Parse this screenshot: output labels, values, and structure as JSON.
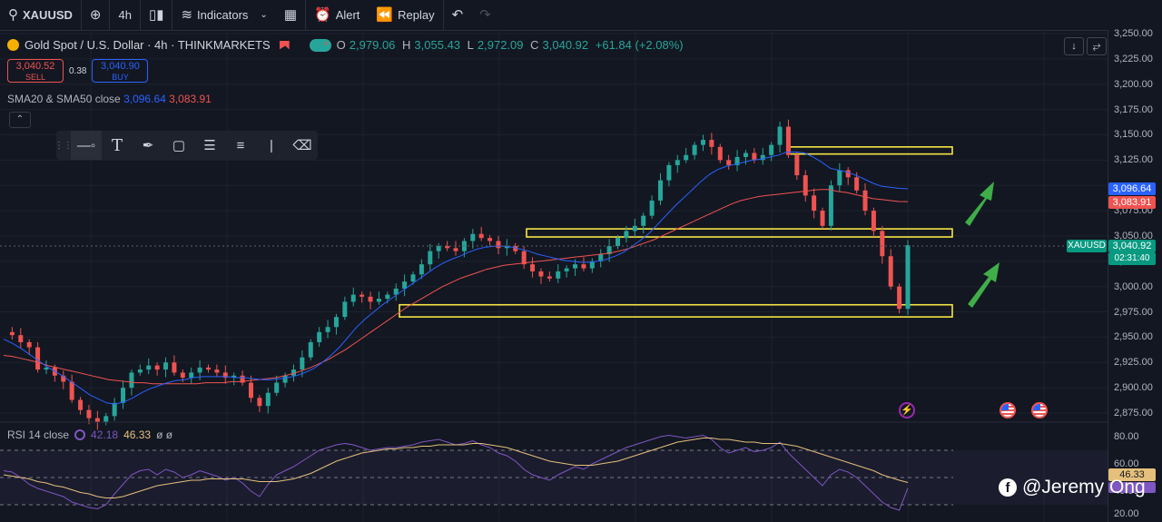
{
  "toolbar": {
    "symbol": "XAUUSD",
    "interval": "4h",
    "indicators_label": "Indicators",
    "alert_label": "Alert",
    "replay_label": "Replay"
  },
  "legend": {
    "title": "Gold Spot / U.S. Dollar · 4h · THINKMARKETS",
    "o_label": "O",
    "o": "2,979.06",
    "h_label": "H",
    "h": "3,055.43",
    "l_label": "L",
    "l": "2,972.09",
    "c_label": "C",
    "c": "3,040.92",
    "change": "+61.84 (+2.08%)"
  },
  "trade": {
    "sell_price": "3,040.52",
    "sell_label": "SELL",
    "spread": "0.38",
    "buy_price": "3,040.90",
    "buy_label": "BUY"
  },
  "sma": {
    "label": "SMA20 & SMA50 close",
    "sma20": "3,096.64",
    "sma50": "3,083.91"
  },
  "collapse_icon": "chevron-up",
  "rsi": {
    "label": "RSI 14 close",
    "v1": "42.18",
    "v2": "46.33",
    "extra": "ø ø"
  },
  "price_axis": {
    "labels": [
      "3,250.00",
      "3,225.00",
      "3,200.00",
      "3,175.00",
      "3,150.00",
      "3,125.00",
      "3,075.00",
      "3,050.00",
      "3,025.00",
      "3,000.00",
      "2,975.00",
      "2,950.00",
      "2,925.00",
      "2,900.00",
      "2,875.00"
    ],
    "sma20_tag": "3,096.64",
    "sma50_tag": "3,083.91",
    "price_tag": "3,040.92",
    "countdown": "02:31:40",
    "symbol_tag": "XAUUSD"
  },
  "rsi_axis": {
    "labels": [
      "80.00",
      "60.00",
      "40.00",
      "20.00"
    ],
    "tag": "46.33"
  },
  "watermark": "@Jeremy Ong",
  "colors": {
    "bg": "#131722",
    "up": "#26a69a",
    "down": "#ef5350",
    "sma20": "#2962ff",
    "sma50": "#ef5350",
    "zone": "#f5e642",
    "arrow": "#3fae49",
    "rsi": "#7e57c2",
    "rsi_ma": "#e5c07b"
  },
  "chart_data": {
    "type": "candlestick",
    "title": "Gold Spot / U.S. Dollar · 4h · THINKMARKETS",
    "ylim": [
      2860,
      3255
    ],
    "price_series": [
      2955,
      2952,
      2945,
      2940,
      2918,
      2920,
      2912,
      2906,
      2888,
      2878,
      2870,
      2866,
      2872,
      2885,
      2900,
      2915,
      2918,
      2922,
      2918,
      2925,
      2915,
      2910,
      2915,
      2920,
      2918,
      2915,
      2910,
      2912,
      2905,
      2890,
      2882,
      2895,
      2905,
      2912,
      2918,
      2930,
      2945,
      2955,
      2960,
      2970,
      2985,
      2992,
      2990,
      2985,
      2988,
      2992,
      2998,
      3005,
      3012,
      3022,
      3035,
      3040,
      3038,
      3035,
      3045,
      3052,
      3048,
      3045,
      3038,
      3040,
      3035,
      3022,
      3015,
      3010,
      3008,
      3015,
      3018,
      3022,
      3018,
      3025,
      3032,
      3040,
      3048,
      3055,
      3060,
      3070,
      3085,
      3105,
      3120,
      3125,
      3130,
      3140,
      3145,
      3138,
      3125,
      3120,
      3128,
      3132,
      3125,
      3130,
      3140,
      3158,
      3130,
      3110,
      3090,
      3075,
      3060,
      3100,
      3115,
      3108,
      3095,
      3075,
      3055,
      3030,
      3000,
      2978,
      3040.92
    ],
    "sma20_series": [
      2948,
      2944,
      2939,
      2933,
      2927,
      2921,
      2916,
      2911,
      2905,
      2899,
      2893,
      2889,
      2885,
      2884,
      2886,
      2890,
      2895,
      2899,
      2902,
      2905,
      2907,
      2908,
      2910,
      2911,
      2911,
      2911,
      2911,
      2910,
      2910,
      2909,
      2908,
      2908,
      2909,
      2910,
      2912,
      2915,
      2919,
      2925,
      2932,
      2940,
      2950,
      2960,
      2968,
      2975,
      2982,
      2988,
      2994,
      3000,
      3006,
      3012,
      3018,
      3023,
      3027,
      3030,
      3034,
      3037,
      3039,
      3040,
      3040,
      3039,
      3037,
      3035,
      3032,
      3030,
      3028,
      3026,
      3025,
      3024,
      3024,
      3025,
      3027,
      3030,
      3034,
      3040,
      3046,
      3053,
      3062,
      3071,
      3080,
      3088,
      3096,
      3104,
      3111,
      3116,
      3119,
      3121,
      3123,
      3125,
      3126,
      3128,
      3130,
      3133,
      3133,
      3132,
      3128,
      3123,
      3117,
      3115,
      3113,
      3110,
      3106,
      3102,
      3099,
      3098,
      3097,
      3096.64
    ],
    "sma50_series": [
      2932,
      2931,
      2929,
      2927,
      2925,
      2922,
      2920,
      2918,
      2916,
      2914,
      2912,
      2910,
      2908,
      2907,
      2906,
      2905,
      2905,
      2904,
      2904,
      2904,
      2904,
      2904,
      2904,
      2905,
      2905,
      2905,
      2906,
      2906,
      2907,
      2908,
      2909,
      2910,
      2912,
      2914,
      2917,
      2920,
      2924,
      2928,
      2933,
      2938,
      2944,
      2950,
      2956,
      2962,
      2968,
      2974,
      2980,
      2985,
      2990,
      2995,
      3000,
      3004,
      3008,
      3011,
      3014,
      3017,
      3019,
      3021,
      3022,
      3023,
      3024,
      3025,
      3026,
      3027,
      3028,
      3029,
      3030,
      3031,
      3032,
      3033,
      3035,
      3037,
      3040,
      3043,
      3046,
      3050,
      3054,
      3058,
      3062,
      3066,
      3070,
      3074,
      3078,
      3082,
      3085,
      3087,
      3089,
      3090,
      3091,
      3092,
      3093,
      3094,
      3095,
      3096,
      3096,
      3094,
      3093,
      3091,
      3089,
      3087,
      3086,
      3085,
      3084,
      3083.91
    ],
    "zones": [
      [
        2970,
        2982
      ],
      [
        3049,
        3057
      ],
      [
        3131,
        3138
      ]
    ],
    "rsi_ylim": [
      20,
      85
    ],
    "rsi_series": [
      55,
      54,
      50,
      45,
      42,
      40,
      38,
      36,
      32,
      30,
      28,
      27,
      30,
      38,
      45,
      52,
      55,
      56,
      52,
      56,
      54,
      50,
      52,
      55,
      53,
      51,
      48,
      50,
      46,
      40,
      36,
      45,
      52,
      55,
      58,
      62,
      66,
      70,
      72,
      74,
      75,
      74,
      72,
      70,
      71,
      72,
      72,
      73,
      74,
      76,
      77,
      78,
      76,
      74,
      75,
      77,
      74,
      72,
      68,
      66,
      62,
      56,
      52,
      50,
      48,
      52,
      55,
      58,
      56,
      60,
      63,
      66,
      69,
      72,
      74,
      76,
      78,
      80,
      81,
      80,
      79,
      80,
      81,
      78,
      72,
      68,
      70,
      72,
      69,
      70,
      72,
      76,
      68,
      62,
      56,
      50,
      44,
      52,
      56,
      54,
      50,
      44,
      38,
      32,
      28,
      26,
      42.18
    ],
    "rsi_ma_series": [
      52,
      51,
      50,
      49,
      47,
      46,
      44,
      43,
      41,
      39,
      38,
      36,
      35,
      35,
      36,
      38,
      40,
      42,
      44,
      45,
      46,
      47,
      48,
      48,
      49,
      49,
      49,
      49,
      49,
      48,
      47,
      47,
      47,
      48,
      49,
      51,
      53,
      56,
      59,
      62,
      64,
      66,
      68,
      69,
      70,
      71,
      71,
      72,
      72,
      73,
      73,
      74,
      74,
      74,
      74,
      75,
      75,
      74,
      73,
      72,
      70,
      68,
      66,
      64,
      62,
      61,
      60,
      59,
      59,
      59,
      60,
      61,
      62,
      64,
      66,
      68,
      70,
      72,
      74,
      76,
      77,
      78,
      79,
      79,
      78,
      78,
      77,
      76,
      76,
      75,
      75,
      75,
      74,
      73,
      71,
      69,
      67,
      65,
      63,
      61,
      59,
      57,
      55,
      52,
      50,
      48,
      46.33
    ],
    "rsi_levels": [
      70,
      50,
      30
    ]
  }
}
